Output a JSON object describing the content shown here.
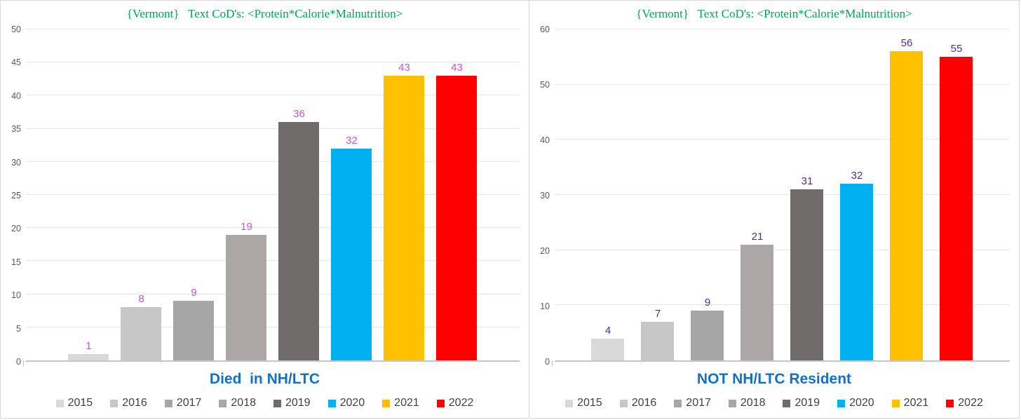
{
  "chart_data": [
    {
      "type": "bar",
      "title": "{Vermont}   Text CoD's: <Protein*Calorie*Malnutrition>",
      "title_color": "#00A551",
      "axis_title": "Died  in NH/LTC",
      "axis_title_color": "#1470C4",
      "data_label_color": "#C355C9",
      "categories": [
        "2015",
        "2016",
        "2017",
        "2018",
        "2019",
        "2020",
        "2021",
        "2022"
      ],
      "values": [
        1,
        8,
        9,
        19,
        36,
        32,
        43,
        43
      ],
      "colors": [
        "#D9D9D9",
        "#C7C7C7",
        "#A6A6A6",
        "#ACA6A6",
        "#716C6C",
        "#00B0F0",
        "#FFC000",
        "#FF0000"
      ],
      "ylim": [
        0,
        50
      ],
      "yticks": [
        0,
        5,
        10,
        15,
        20,
        25,
        30,
        35,
        40,
        45,
        50
      ],
      "grid": true,
      "legend_position": "bottom"
    },
    {
      "type": "bar",
      "title": "{Vermont}   Text CoD's: <Protein*Calorie*Malnutrition>",
      "title_color": "#00A551",
      "axis_title": "NOT NH/LTC Resident",
      "axis_title_color": "#1470C4",
      "data_label_color": "#4F2D8F",
      "categories": [
        "2015",
        "2016",
        "2017",
        "2018",
        "2019",
        "2020",
        "2021",
        "2022"
      ],
      "values": [
        4,
        7,
        9,
        21,
        31,
        32,
        56,
        55
      ],
      "colors": [
        "#D9D9D9",
        "#C7C7C7",
        "#A6A6A6",
        "#ACA6A6",
        "#716C6C",
        "#00B0F0",
        "#FFC000",
        "#FF0000"
      ],
      "ylim": [
        0,
        60
      ],
      "yticks": [
        0,
        10,
        20,
        30,
        40,
        50,
        60
      ],
      "grid": true,
      "legend_position": "bottom"
    }
  ]
}
